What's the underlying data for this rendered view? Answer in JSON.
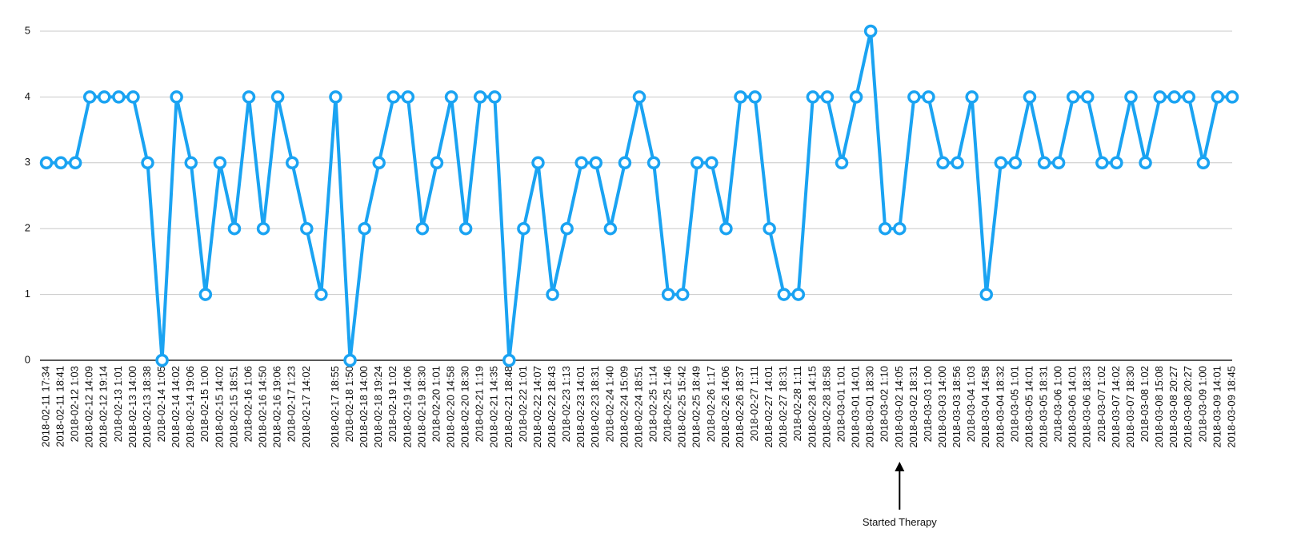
{
  "chart_data": {
    "type": "line",
    "categories": [
      "2018-02-11 17:34",
      "2018-02-11 18:41",
      "2018-02-12 1:03",
      "2018-02-12 14:09",
      "2018-02-12 19:14",
      "2018-02-13 1:01",
      "2018-02-13 14:00",
      "2018-02-13 18:38",
      "2018-02-14 1:05",
      "2018-02-14 14:02",
      "2018-02-14 19:06",
      "2018-02-15 1:00",
      "2018-02-15 14:02",
      "2018-02-15 18:51",
      "2018-02-16 1:06",
      "2018-02-16 14:50",
      "2018-02-16 19:06",
      "2018-02-17 1:23",
      "2018-02-17 14:02",
      null,
      "2018-02-17 18:55",
      "2018-02-18 1:50",
      "2018-02-18 14:00",
      "2018-02-18 19:24",
      "2018-02-19 1:02",
      "2018-02-19 14:06",
      "2018-02-19 18:30",
      "2018-02-20 1:01",
      "2018-02-20 14:58",
      "2018-02-20 18:30",
      "2018-02-21 1:19",
      "2018-02-21 14:35",
      "2018-02-21 18:48",
      "2018-02-22 1:01",
      "2018-02-22 14:07",
      "2018-02-22 18:43",
      "2018-02-23 1:13",
      "2018-02-23 14:01",
      "2018-02-23 18:31",
      "2018-02-24 1:40",
      "2018-02-24 15:09",
      "2018-02-24 18:51",
      "2018-02-25 1:14",
      "2018-02-25 1:46",
      "2018-02-25 15:42",
      "2018-02-25 18:49",
      "2018-02-26 1:17",
      "2018-02-26 14:06",
      "2018-02-26 18:37",
      "2018-02-27 1:11",
      "2018-02-27 14:01",
      "2018-02-27 18:31",
      "2018-02-28 1:11",
      "2018-02-28 14:15",
      "2018-02-28 18:58",
      "2018-03-01 1:01",
      "2018-03-01 14:01",
      "2018-03-01 18:30",
      "2018-03-02 1:10",
      "2018-03-02 14:05",
      "2018-03-02 18:31",
      "2018-03-03 1:00",
      "2018-03-03 14:00",
      "2018-03-03 18:56",
      "2018-03-04 1:03",
      "2018-03-04 14:58",
      "2018-03-04 18:32",
      "2018-03-05 1:01",
      "2018-03-05 14:01",
      "2018-03-05 18:31",
      "2018-03-06 1:00",
      "2018-03-06 14:01",
      "2018-03-06 18:33",
      "2018-03-07 1:02",
      "2018-03-07 14:02",
      "2018-03-07 18:30",
      "2018-03-08 1:02",
      "2018-03-08 15:08",
      "2018-03-08 20:27",
      "2018-03-08 20:27",
      "2018-03-09 1:00",
      "2018-03-09 14:01",
      "2018-03-09 18:45"
    ],
    "values": [
      3,
      3,
      3,
      4,
      4,
      4,
      4,
      3,
      0,
      4,
      3,
      1,
      3,
      2,
      4,
      2,
      4,
      3,
      2,
      1,
      4,
      0,
      2,
      3,
      4,
      4,
      2,
      3,
      4,
      2,
      4,
      4,
      0,
      2,
      3,
      1,
      2,
      3,
      3,
      2,
      3,
      4,
      3,
      1,
      1,
      3,
      3,
      2,
      4,
      4,
      2,
      1,
      1,
      4,
      4,
      3,
      4,
      5,
      2,
      2,
      4,
      4,
      3,
      3,
      4,
      1,
      3,
      3,
      4,
      3,
      3,
      4,
      4,
      3,
      3,
      4,
      3,
      4,
      4,
      4,
      3,
      4,
      4
    ],
    "color": "#1aa3f2",
    "ylim": [
      0,
      5
    ],
    "yticks": [
      0,
      1,
      2,
      3,
      4,
      5
    ],
    "grid": true,
    "annotation": {
      "text": "Started Therapy",
      "x": "2018-03-02 14:05"
    }
  }
}
